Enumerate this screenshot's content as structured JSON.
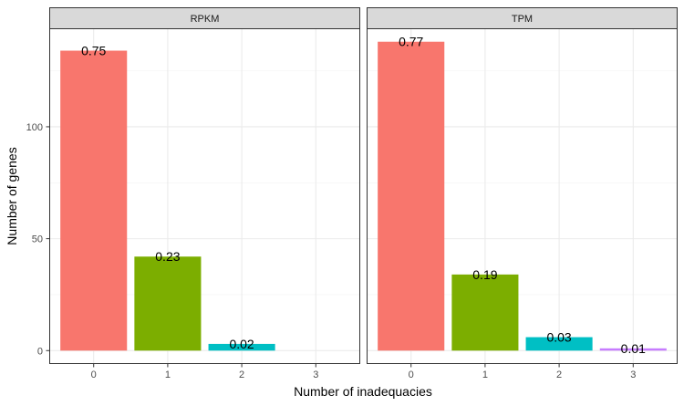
{
  "chart_data": {
    "type": "bar",
    "xlabel": "Number of inadequacies",
    "ylabel": "Number of genes",
    "categories": [
      "0",
      "1",
      "2",
      "3"
    ],
    "ylim": [
      -6,
      144
    ],
    "yticks": [
      0,
      50,
      100
    ],
    "grid": true,
    "legend": "none",
    "colors": [
      "#F8766D",
      "#7CAE00",
      "#00BFC4",
      "#C77CFF"
    ],
    "panels": [
      {
        "strip": "RPKM",
        "values": [
          134,
          42,
          3,
          0
        ],
        "labels": [
          "0.75",
          "0.23",
          "0.02",
          ""
        ]
      },
      {
        "strip": "TPM",
        "values": [
          138,
          34,
          6,
          1
        ],
        "labels": [
          "0.77",
          "0.19",
          "0.03",
          "0.01"
        ]
      }
    ]
  }
}
